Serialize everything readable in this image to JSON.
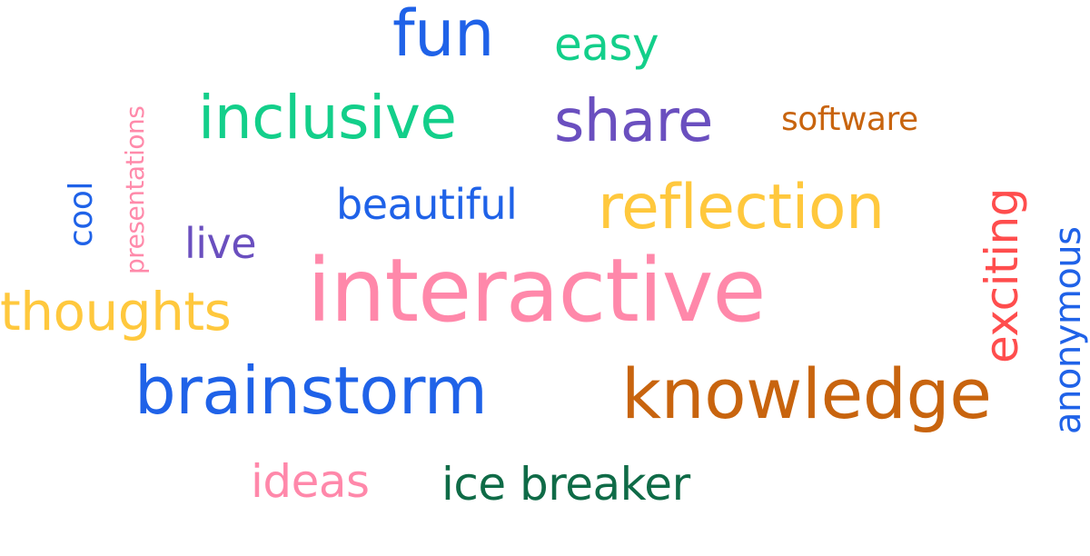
{
  "words": {
    "fun": {
      "text": "fun",
      "color": "#1f62e8"
    },
    "easy": {
      "text": "easy",
      "color": "#13cf8a"
    },
    "inclusive": {
      "text": "inclusive",
      "color": "#13cf8a"
    },
    "share": {
      "text": "share",
      "color": "#6a4fbf"
    },
    "software": {
      "text": "software",
      "color": "#c8640e"
    },
    "presentations": {
      "text": "presentations",
      "color": "#ff8aaa"
    },
    "cool": {
      "text": "cool",
      "color": "#1f62e8"
    },
    "beautiful": {
      "text": "beautiful",
      "color": "#1f62e8"
    },
    "reflection": {
      "text": "reflection",
      "color": "#ffc83d"
    },
    "exciting": {
      "text": "exciting",
      "color": "#ff4d4d"
    },
    "anonymous": {
      "text": "anonymous",
      "color": "#1f62e8"
    },
    "live": {
      "text": "live",
      "color": "#6a4fbf"
    },
    "interactive": {
      "text": "interactive",
      "color": "#ff88aa"
    },
    "thoughts": {
      "text": "thoughts",
      "color": "#ffc83d"
    },
    "brainstorm": {
      "text": "brainstorm",
      "color": "#1f62e8"
    },
    "knowledge": {
      "text": "knowledge",
      "color": "#c8640e"
    },
    "ideas": {
      "text": "ideas",
      "color": "#ff88aa"
    },
    "ice_breaker": {
      "text": "ice breaker",
      "color": "#0f6b47"
    }
  }
}
